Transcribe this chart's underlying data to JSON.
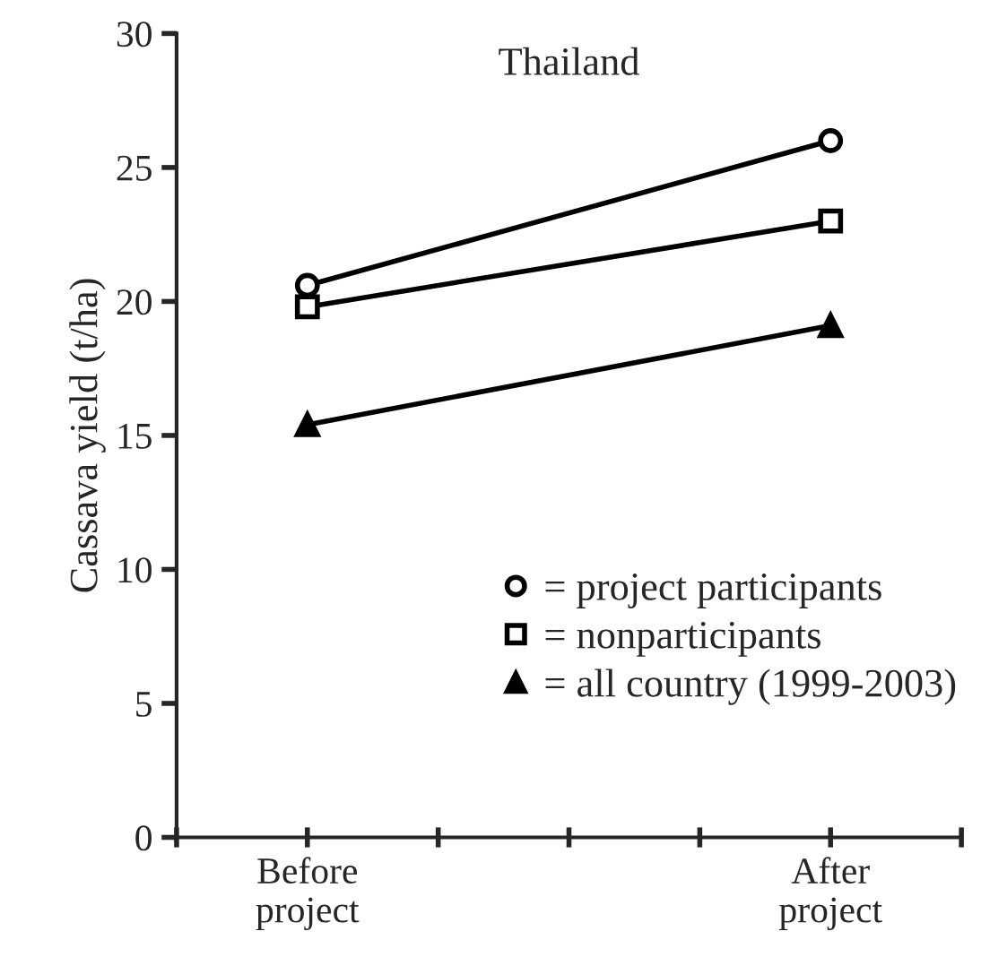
{
  "chart_data": {
    "type": "line",
    "title": "Thailand",
    "ylabel": "Cassava yield (t/ha)",
    "categories": [
      null,
      "Before\nproject",
      null,
      null,
      null,
      "After\nproject",
      null
    ],
    "series": [
      {
        "name": "= project participants",
        "color": "#000000",
        "marker": "circle",
        "values": [
          null,
          20.6,
          null,
          null,
          null,
          26.0,
          null
        ]
      },
      {
        "name": "= nonparticipants",
        "color": "#000000",
        "marker": "square",
        "values": [
          null,
          19.8,
          null,
          null,
          null,
          23.0,
          null
        ]
      },
      {
        "name": "= all country (1999-2003)",
        "color": "#000000",
        "marker": "triangle",
        "values": [
          null,
          15.4,
          null,
          null,
          null,
          19.1,
          null
        ]
      }
    ],
    "ylim": [
      0,
      30
    ],
    "yticks": [
      0,
      5,
      10,
      15,
      20,
      25,
      30
    ],
    "grid": false,
    "legend": "bottom right",
    "line_style": "solid"
  }
}
